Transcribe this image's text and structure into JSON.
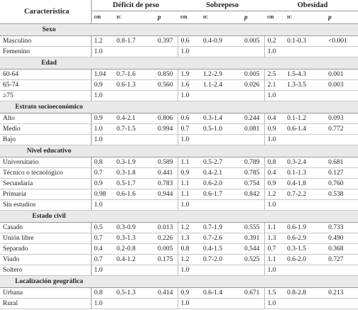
{
  "table": {
    "header": {
      "label": "Característica",
      "groups": [
        "Déficit de peso",
        "Sobrepeso",
        "Obesidad"
      ],
      "subheaders": [
        "OR",
        "IC",
        "p"
      ]
    },
    "sections": [
      {
        "title": "Sexo",
        "rows": [
          {
            "label": "Masculino",
            "groups": [
              [
                "1.2",
                "0.8-1.7",
                "0.397"
              ],
              [
                "0.6",
                "0.4-0.9",
                "0.005"
              ],
              [
                "0.2",
                "0.1-0.3",
                "<0.001"
              ]
            ]
          },
          {
            "label": "Femenino",
            "groups": [
              [
                "1.0"
              ],
              [
                "1.0"
              ],
              [
                "1.0"
              ]
            ]
          }
        ]
      },
      {
        "title": "Edad",
        "rows": [
          {
            "label": "60-64",
            "groups": [
              [
                "1.04",
                "0.7-1.6",
                "0.850"
              ],
              [
                "1.9",
                "1.2-2.9",
                "0.005"
              ],
              [
                "2.5",
                "1.5-4.3",
                "0.001"
              ]
            ]
          },
          {
            "label": "65-74",
            "groups": [
              [
                "0.9",
                "0.6-1.3",
                "0.560"
              ],
              [
                "1.6",
                "1.1-2.4",
                "0.026"
              ],
              [
                "2.1",
                "1.3-3.5",
                "0.003"
              ]
            ]
          },
          {
            "label": "≥75",
            "groups": [
              [
                "1.0"
              ],
              [
                "1.0"
              ],
              [
                "1.0"
              ]
            ]
          }
        ]
      },
      {
        "title": "Estrato socioeconómico",
        "rows": [
          {
            "label": "Alto",
            "groups": [
              [
                "0.9",
                "0.4-2.1",
                "0.806"
              ],
              [
                "0.6",
                "0.3-1.4",
                "0.244"
              ],
              [
                "0.4",
                "0.1-1.2",
                "0.093"
              ]
            ]
          },
          {
            "label": "Medio",
            "groups": [
              [
                "1.0",
                "0.7-1.5",
                "0.994"
              ],
              [
                "0.7",
                "0.5-1.0",
                "0.081"
              ],
              [
                "0.9",
                "0.6-1.4",
                "0.772"
              ]
            ]
          },
          {
            "label": "Bajo",
            "groups": [
              [
                "1.0"
              ],
              [
                "1.0"
              ],
              [
                "1.0"
              ]
            ]
          }
        ]
      },
      {
        "title": "Nivel educativo",
        "rows": [
          {
            "label": "Universitario",
            "groups": [
              [
                "0.8",
                "0.3-1.9",
                "0.589"
              ],
              [
                "1.1",
                "0.5-2.7",
                "0.789"
              ],
              [
                "0.8",
                "0.3-2.4",
                "0.681"
              ]
            ]
          },
          {
            "label": "Técnico o tecnológico",
            "groups": [
              [
                "0.7",
                "0.3-1.8",
                "0.441"
              ],
              [
                "0.9",
                "0.4-2.1",
                "0.785"
              ],
              [
                "0.4",
                "0.1-1.3",
                "0.127"
              ]
            ]
          },
          {
            "label": "Secundaria",
            "groups": [
              [
                "0.9",
                "0.5-1.7",
                "0.783"
              ],
              [
                "1.1",
                "0.6-2.0",
                "0.754"
              ],
              [
                "0.9",
                "0.4-1.8",
                "0.760"
              ]
            ]
          },
          {
            "label": "Primaria",
            "groups": [
              [
                "0.98",
                "0.6-1.6",
                "0.944"
              ],
              [
                "1.1",
                "0.6-1.7",
                "0.842"
              ],
              [
                "1.2",
                "0.7-2.2",
                "0.538"
              ]
            ]
          },
          {
            "label": "Sin estudios",
            "groups": [
              [
                "1.0"
              ],
              [
                "1.0"
              ],
              [
                "1.0"
              ]
            ]
          }
        ]
      },
      {
        "title": "Estado civil",
        "rows": [
          {
            "label": "Casado",
            "groups": [
              [
                "0.5",
                "0.3-0.9",
                "0.013"
              ],
              [
                "1.2",
                "0.7-1.9",
                "0.555"
              ],
              [
                "1.1",
                "0.6-1.9",
                "0.733"
              ]
            ]
          },
          {
            "label": "Unión libre",
            "groups": [
              [
                "0.7",
                "0.3-1.3",
                "0.226"
              ],
              [
                "1.3",
                "0.7-2.6",
                "0.391"
              ],
              [
                "1.3",
                "0.6-2.9",
                "0.490"
              ]
            ]
          },
          {
            "label": "Separado",
            "groups": [
              [
                "0.4",
                "0.2-0.8",
                "0.005"
              ],
              [
                "0.8",
                "0.4-1.5",
                "0.544"
              ],
              [
                "0.7",
                "0.3-1.5",
                "0.368"
              ]
            ]
          },
          {
            "label": "Viudo",
            "groups": [
              [
                "0.7",
                "0.4-1.2",
                "0.175"
              ],
              [
                "1.2",
                "0.7-2.0",
                "0.525"
              ],
              [
                "1.1",
                "0.6-2.0",
                "0.727"
              ]
            ]
          },
          {
            "label": "Soltero",
            "groups": [
              [
                "1.0"
              ],
              [
                "1.0"
              ],
              [
                "1.0"
              ]
            ]
          }
        ]
      },
      {
        "title": "Localización geográfica",
        "rows": [
          {
            "label": "Urbana",
            "groups": [
              [
                "0.8",
                "0.5-1.3",
                "0.414"
              ],
              [
                "0.9",
                "0.6-1.4",
                "0.671"
              ],
              [
                "1.5",
                "0.8-2.8",
                "0.213"
              ]
            ]
          },
          {
            "label": "Rural",
            "groups": [
              [
                "1.0"
              ],
              [
                "1.0"
              ],
              [
                "1.0"
              ]
            ]
          }
        ]
      }
    ]
  }
}
